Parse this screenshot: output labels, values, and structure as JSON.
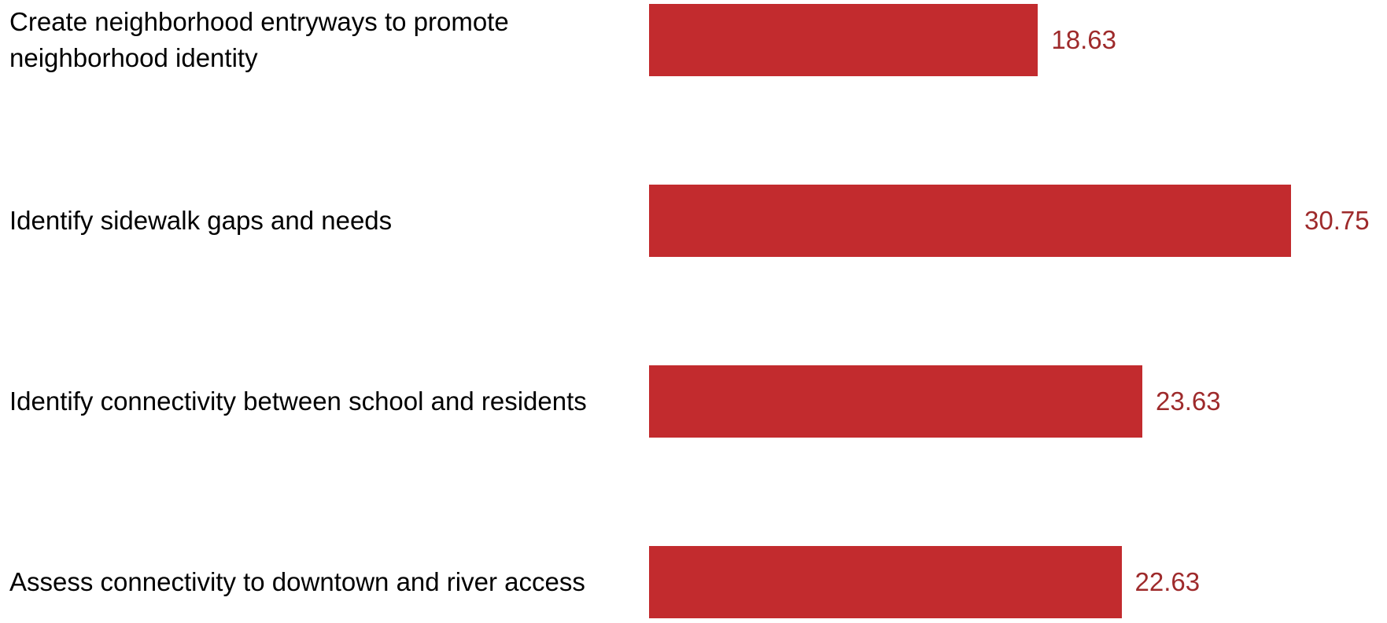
{
  "chart_data": {
    "type": "bar",
    "orientation": "horizontal",
    "categories": [
      "Create neighborhood entryways to promote neighborhood identity",
      "Identify sidewalk gaps and needs",
      "Identify connectivity between school and residents",
      "Assess connectivity to downtown and river access"
    ],
    "values": [
      18.63,
      30.75,
      23.63,
      22.63
    ],
    "value_labels": [
      "18.63",
      "30.75",
      "23.63",
      "22.63"
    ],
    "xlim": [
      0,
      30.75
    ],
    "title": "",
    "xlabel": "",
    "ylabel": "",
    "grid": false,
    "legend": "none",
    "colors": {
      "bar": "#c22b2e",
      "value_label": "#9e2a2b",
      "category_label": "#000000"
    }
  }
}
